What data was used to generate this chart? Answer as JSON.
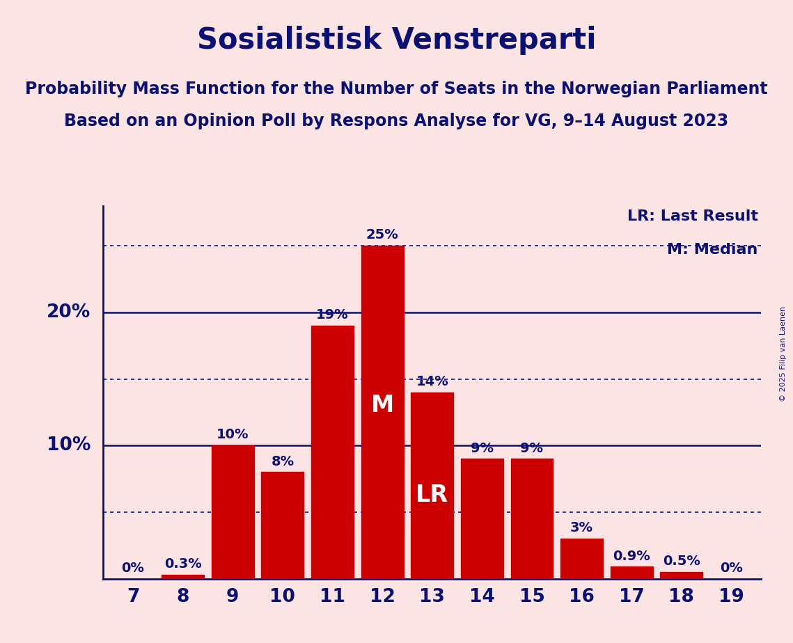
{
  "title": "Sosialistisk Venstreparti",
  "subtitle1": "Probability Mass Function for the Number of Seats in the Norwegian Parliament",
  "subtitle2": "Based on an Opinion Poll by Respons Analyse for VG, 9–14 August 2023",
  "copyright": "© 2025 Filip van Laenen",
  "categories": [
    7,
    8,
    9,
    10,
    11,
    12,
    13,
    14,
    15,
    16,
    17,
    18,
    19
  ],
  "values": [
    0.0,
    0.3,
    10.0,
    8.0,
    19.0,
    25.0,
    14.0,
    9.0,
    9.0,
    3.0,
    0.9,
    0.5,
    0.0
  ],
  "bar_color": "#cc0000",
  "background_color": "#fce4e4",
  "text_color": "#0a1172",
  "bar_labels": [
    "0%",
    "0.3%",
    "10%",
    "8%",
    "19%",
    "25%",
    "14%",
    "9%",
    "9%",
    "3%",
    "0.9%",
    "0.5%",
    "0%"
  ],
  "median_bar": 12,
  "lr_bar": 13,
  "median_label": "M",
  "lr_label": "LR",
  "legend_lr": "LR: Last Result",
  "legend_m": "M: Median",
  "hlines_solid": [
    10,
    20
  ],
  "hlines_dotted": [
    5,
    15,
    25
  ],
  "ylim": [
    0,
    28
  ],
  "title_fontsize": 30,
  "subtitle_fontsize": 17,
  "label_fontsize": 14,
  "tick_fontsize": 19,
  "legend_fontsize": 16,
  "inner_label_fontsize": 24
}
